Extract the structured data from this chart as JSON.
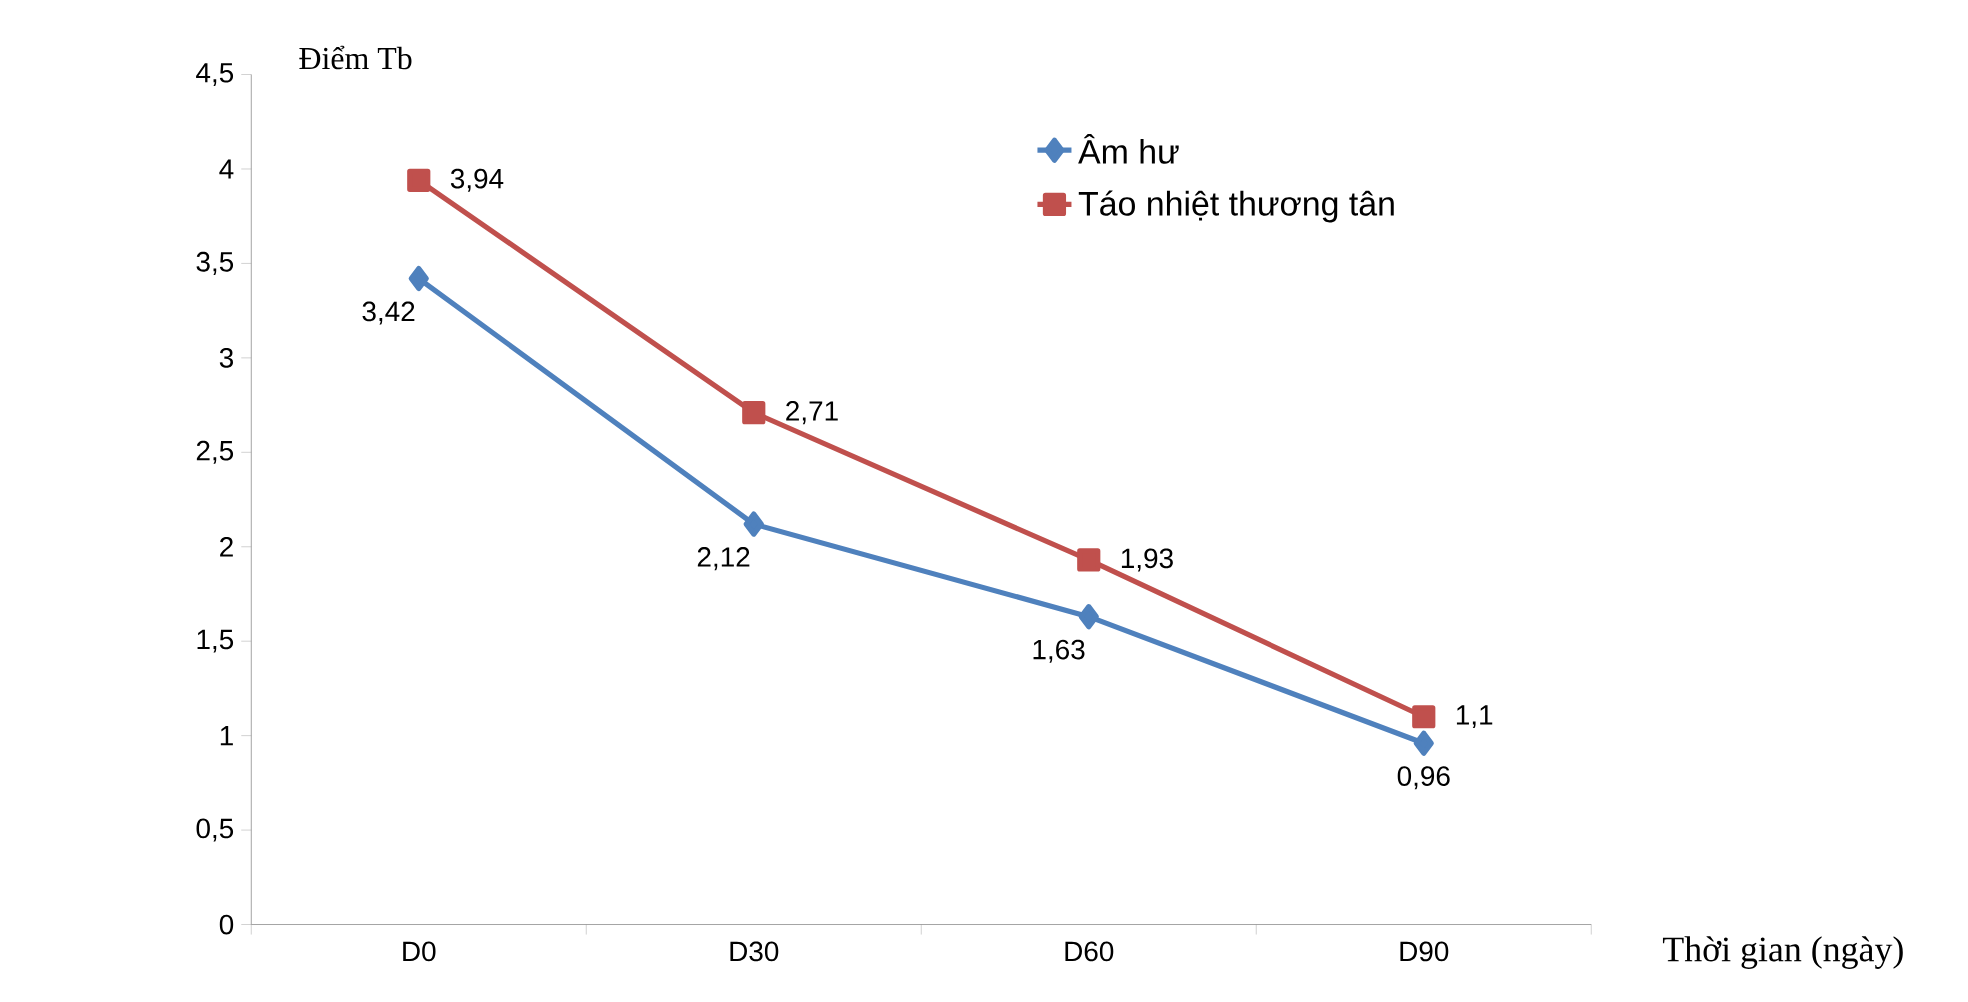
{
  "chart_data": {
    "type": "line",
    "ylabel": "Điểm Tb",
    "xlabel": "Thời gian (ngày)",
    "categories": [
      "D0",
      "D30",
      "D60",
      "D90"
    ],
    "series": [
      {
        "name": "Âm hư",
        "color": "#4f81bd",
        "marker": "diamond",
        "values": [
          3.42,
          2.12,
          1.63,
          0.96
        ],
        "value_labels": [
          "3,42",
          "2,12",
          "1,63",
          "0,96"
        ]
      },
      {
        "name": "Táo nhiệt thương tân",
        "color": "#c0504d",
        "marker": "square",
        "values": [
          3.94,
          2.71,
          1.93,
          1.1
        ],
        "value_labels": [
          "3,94",
          "2,71",
          "1,93",
          "1,1"
        ]
      }
    ],
    "ylim": [
      0,
      4.5
    ],
    "yticks": [
      0,
      {
        "value": 0.5,
        "label": "0,5"
      },
      1,
      {
        "value": 1.5,
        "label": "1,5"
      },
      2,
      {
        "value": 2.5,
        "label": "2,5"
      },
      3,
      {
        "value": 3.5,
        "label": "3,5"
      },
      4,
      {
        "value": 4.5,
        "label": "4,5"
      }
    ],
    "grid": false,
    "legend": "top right",
    "line_style": "solid"
  }
}
